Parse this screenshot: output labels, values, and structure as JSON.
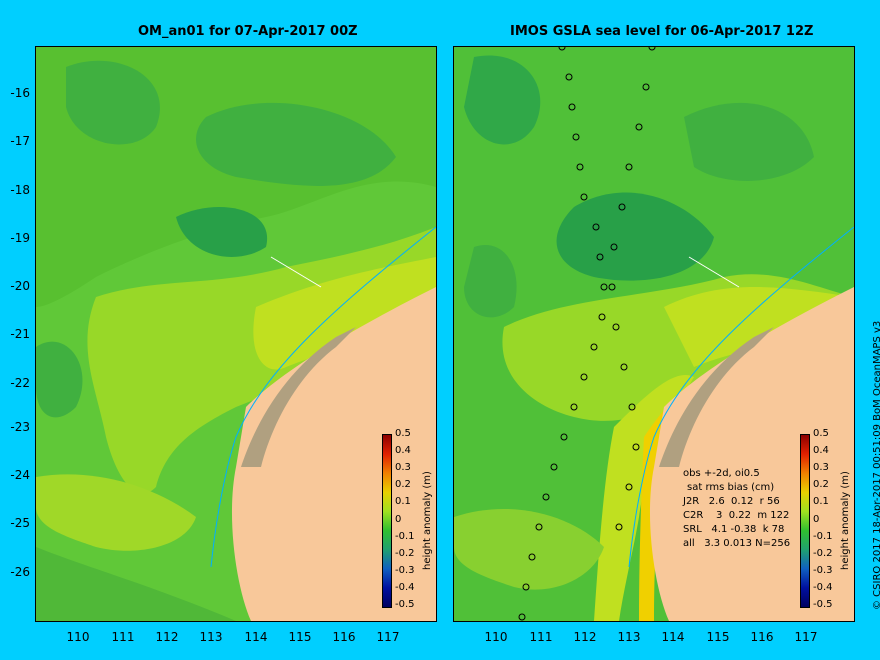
{
  "left_panel": {
    "title": "OM_an01 for 07-Apr-2017 00Z",
    "colorbar": {
      "label": "height anomaly (m)",
      "ticks": [
        "0.5",
        "0.4",
        "0.3",
        "0.2",
        "0.1",
        "0",
        "-0.1",
        "-0.2",
        "-0.3",
        "-0.4",
        "-0.5"
      ]
    }
  },
  "right_panel": {
    "title": "IMOS GSLA sea level  for 06-Apr-2017 12Z",
    "colorbar": {
      "label": "height anomaly (m)",
      "ticks": [
        "0.5",
        "0.4",
        "0.3",
        "0.2",
        "0.1",
        "0",
        "-0.1",
        "-0.2",
        "-0.3",
        "-0.4",
        "-0.5"
      ]
    },
    "stats": {
      "line1": "obs +-2d, oi0.5",
      "line2": "sat rms bias (cm)",
      "rows": [
        "J2R   2.6  0.12  r 56",
        "C2R    3  0.22  m 122",
        "SRL   4.1 -0.38  k 78",
        "all   3.3 0.013 N=256"
      ]
    }
  },
  "axes": {
    "y_ticks": [
      "-16",
      "-17",
      "-18",
      "-19",
      "-20",
      "-21",
      "-22",
      "-23",
      "-24",
      "-25",
      "-26"
    ],
    "x_ticks": [
      "110",
      "111",
      "112",
      "113",
      "114",
      "115",
      "116",
      "117"
    ]
  },
  "credit": "© CSIRO 2017   18-Apr-2017 00:51:09 BoM OceanMAPS v3",
  "colors": {
    "background": "#00cfff",
    "land": "#f8c89a",
    "coast_shelf": "#b0a080",
    "anomaly_neg": "#20a050",
    "anomaly_zero": "#30c030",
    "anomaly_pos": "#b0e020",
    "anomaly_high": "#e8c000",
    "track": "#000000"
  }
}
